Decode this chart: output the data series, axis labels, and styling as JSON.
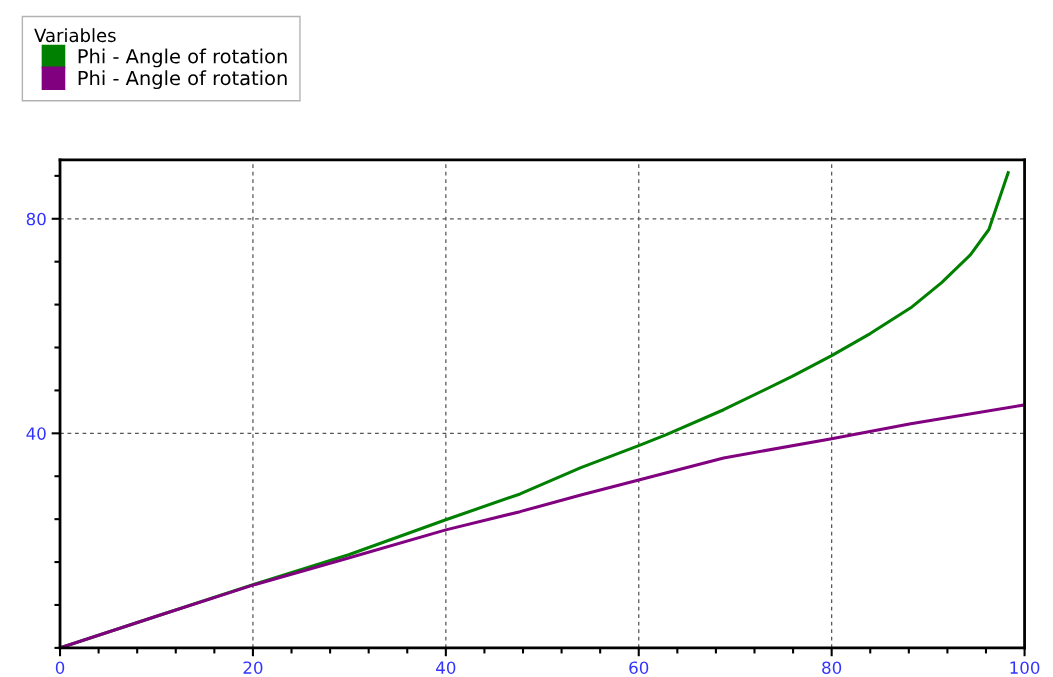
{
  "chart_data": {
    "type": "line",
    "legend_title": "Variables",
    "legend": "top",
    "series": [
      {
        "name": "Phi - Angle of rotation",
        "color": "#008000",
        "x": [
          0,
          10,
          20,
          30,
          40,
          47.7,
          54,
          60,
          62.8,
          68.8,
          75.9,
          80,
          84,
          88.2,
          91.4,
          94.4,
          96.3,
          98.3
        ],
        "values": [
          0,
          5.9,
          11.8,
          17.4,
          23.9,
          28.7,
          33.6,
          37.7,
          39.7,
          44.4,
          50.6,
          54.5,
          58.6,
          63.4,
          68.1,
          73.3,
          78.0,
          88.6
        ]
      },
      {
        "name": "Phi - Angle of rotation",
        "color": "#800080",
        "x": [
          0,
          10,
          20,
          30,
          40,
          47.7,
          54,
          60,
          68.8,
          80,
          88.2,
          100
        ],
        "values": [
          0,
          5.9,
          11.7,
          16.8,
          22.0,
          25.4,
          28.5,
          31.3,
          35.4,
          39.0,
          41.8,
          45.3
        ]
      }
    ],
    "xlim": [
      0,
      100
    ],
    "xticks": [
      0,
      20,
      40,
      60,
      80,
      100
    ],
    "ylim": [
      0,
      91
    ],
    "yticks": [
      40,
      80
    ],
    "grid": true,
    "line_style": "solid",
    "marker": "none"
  }
}
